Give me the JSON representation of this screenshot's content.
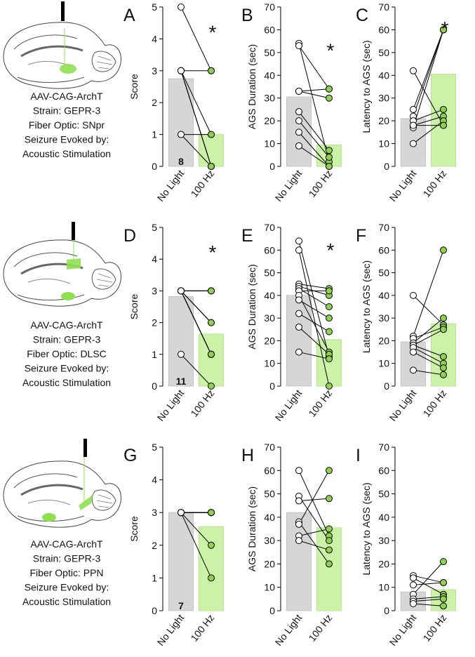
{
  "chart_data": [
    {
      "type": "bar",
      "label": "A",
      "ylabel": "Score",
      "categories": [
        "No Light",
        "100 Hz"
      ],
      "values": [
        2.75,
        1.0
      ],
      "colors": [
        "#d6d6d6",
        "#ccf2a8"
      ],
      "point_colors": [
        "#ffffff",
        "#8fd14f"
      ],
      "before": [
        5,
        3,
        3,
        3,
        3,
        3,
        1,
        1
      ],
      "after": [
        3,
        3,
        1,
        0,
        0,
        0,
        1,
        0
      ],
      "ylim": [
        0,
        5
      ],
      "yticks": [
        0,
        1,
        2,
        3,
        4,
        5
      ],
      "annotation": "*",
      "n_label": "8"
    },
    {
      "type": "bar",
      "label": "B",
      "ylabel": "AGS Duration (sec)",
      "categories": [
        "No Light",
        "100 Hz"
      ],
      "values": [
        30.5,
        9.4
      ],
      "colors": [
        "#d6d6d6",
        "#ccf2a8"
      ],
      "point_colors": [
        "#ffffff",
        "#8fd14f"
      ],
      "before": [
        54,
        53,
        33,
        33,
        24,
        20,
        15,
        9
      ],
      "after": [
        2,
        34,
        30,
        34,
        7,
        4,
        0,
        0
      ],
      "ylim": [
        0,
        70
      ],
      "yticks": [
        0,
        10,
        20,
        30,
        40,
        50,
        60,
        70
      ],
      "annotation": "*"
    },
    {
      "type": "bar",
      "label": "C",
      "ylabel": "Latency to AGS (sec)",
      "categories": [
        "No Light",
        "100 Hz"
      ],
      "values": [
        21,
        40.5
      ],
      "colors": [
        "#d6d6d6",
        "#ccf2a8"
      ],
      "point_colors": [
        "#ffffff",
        "#8fd14f"
      ],
      "before": [
        42,
        25,
        22,
        20,
        18,
        17,
        10,
        18
      ],
      "after": [
        18,
        60,
        60,
        25,
        22,
        60,
        20,
        18
      ],
      "ylim": [
        0,
        70
      ],
      "yticks": [
        0,
        10,
        20,
        30,
        40,
        50,
        60,
        70
      ],
      "annotation": "*"
    },
    {
      "type": "bar",
      "label": "D",
      "ylabel": "Score",
      "categories": [
        "No Light",
        "100 Hz"
      ],
      "values": [
        2.82,
        1.64
      ],
      "colors": [
        "#d6d6d6",
        "#ccf2a8"
      ],
      "point_colors": [
        "#ffffff",
        "#8fd14f"
      ],
      "before": [
        3,
        3,
        3,
        3,
        3,
        3,
        3,
        3,
        3,
        3,
        1
      ],
      "after": [
        3,
        3,
        3,
        2,
        2,
        1,
        1,
        1,
        1,
        1,
        0
      ],
      "ylim": [
        0,
        5
      ],
      "yticks": [
        0,
        1,
        2,
        3,
        4,
        5
      ],
      "annotation": "*",
      "n_label": "11"
    },
    {
      "type": "bar",
      "label": "E",
      "ylabel": "AGS Duration (sec)",
      "categories": [
        "No Light",
        "100 Hz"
      ],
      "values": [
        40,
        20.5
      ],
      "colors": [
        "#d6d6d6",
        "#ccf2a8"
      ],
      "point_colors": [
        "#ffffff",
        "#8fd14f"
      ],
      "before": [
        64,
        60,
        45,
        44,
        43,
        42,
        40,
        38,
        32,
        26,
        15
      ],
      "after": [
        13,
        0,
        43,
        40,
        35,
        42,
        15,
        30,
        24,
        14,
        12
      ],
      "ylim": [
        0,
        70
      ],
      "yticks": [
        0,
        10,
        20,
        30,
        40,
        50,
        60,
        70
      ],
      "annotation": "*"
    },
    {
      "type": "bar",
      "label": "F",
      "ylabel": "Latency to AGS (sec)",
      "categories": [
        "No Light",
        "100 Hz"
      ],
      "values": [
        19.5,
        27.5
      ],
      "colors": [
        "#d6d6d6",
        "#ccf2a8"
      ],
      "point_colors": [
        "#ffffff",
        "#8fd14f"
      ],
      "before": [
        40,
        22,
        21,
        19,
        18,
        18,
        17,
        15,
        7
      ],
      "after": [
        27,
        60,
        26,
        30,
        25,
        13,
        10,
        8,
        5
      ],
      "ylim": [
        0,
        70
      ],
      "yticks": [
        0,
        10,
        20,
        30,
        40,
        50,
        60,
        70
      ]
    },
    {
      "type": "bar",
      "label": "G",
      "ylabel": "Score",
      "categories": [
        "No Light",
        "100 Hz"
      ],
      "values": [
        3.0,
        2.57
      ],
      "colors": [
        "#d6d6d6",
        "#ccf2a8"
      ],
      "point_colors": [
        "#ffffff",
        "#8fd14f"
      ],
      "before": [
        3,
        3,
        3,
        3,
        3,
        3,
        3
      ],
      "after": [
        3,
        3,
        3,
        3,
        3,
        2,
        1
      ],
      "ylim": [
        0,
        5
      ],
      "yticks": [
        0,
        1,
        2,
        3,
        4,
        5
      ],
      "n_label": "7"
    },
    {
      "type": "bar",
      "label": "H",
      "ylabel": "AGS Duration (sec)",
      "categories": [
        "No Light",
        "100 Hz"
      ],
      "values": [
        42,
        35.5
      ],
      "colors": [
        "#d6d6d6",
        "#ccf2a8"
      ],
      "point_colors": [
        "#ffffff",
        "#8fd14f"
      ],
      "before": [
        60,
        49,
        47,
        38,
        37,
        32,
        30
      ],
      "after": [
        32,
        30,
        48,
        20,
        60,
        35,
        26
      ],
      "ylim": [
        0,
        70
      ],
      "yticks": [
        0,
        10,
        20,
        30,
        40,
        50,
        60,
        70
      ]
    },
    {
      "type": "bar",
      "label": "I",
      "ylabel": "Latency to AGS (sec)",
      "categories": [
        "No Light",
        "100 Hz"
      ],
      "values": [
        8,
        9
      ],
      "colors": [
        "#d6d6d6",
        "#ccf2a8"
      ],
      "point_colors": [
        "#ffffff",
        "#8fd14f"
      ],
      "before": [
        15,
        14,
        11,
        7,
        5,
        4,
        3
      ],
      "after": [
        12,
        7,
        12,
        21,
        6,
        5,
        2
      ],
      "ylim": [
        0,
        70
      ],
      "yticks": [
        0,
        10,
        20,
        30,
        40,
        50,
        60,
        70
      ]
    }
  ],
  "descriptions": [
    [
      "AAV-CAG-ArchT",
      "Strain: GEPR-3",
      "Fiber Optic: SNpr",
      "Seizure Evoked by:",
      "Acoustic Stimulation"
    ],
    [
      "AAV-CAG-ArchT",
      "Strain: GEPR-3",
      "Fiber Optic: DLSC",
      "Seizure Evoked by:",
      "Acoustic Stimulation"
    ],
    [
      "AAV-CAG-ArchT",
      "Strain: GEPR-3",
      "Fiber Optic: PPN",
      "Seizure Evoked by:",
      "Acoustic Stimulation"
    ]
  ]
}
